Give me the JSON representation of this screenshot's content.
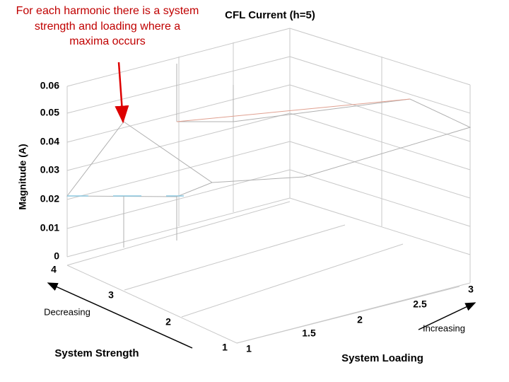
{
  "annotation": {
    "lines": [
      "For each harmonic there is a system",
      "strength and loading where a",
      "maxima occurs"
    ]
  },
  "plot": {
    "title": "CFL Current (h=5)",
    "z_axis": {
      "label": "Magnitude (A)",
      "ticks": [
        "0.06",
        "0.05",
        "0.04",
        "0.03",
        "0.02",
        "0.01",
        "0"
      ]
    },
    "strength_axis": {
      "label": "System Strength",
      "direction": "Decreasing",
      "ticks": [
        "4",
        "3",
        "2",
        "1"
      ]
    },
    "loading_axis": {
      "label": "System Loading",
      "direction": "Increasing",
      "ticks": [
        "1",
        "1.5",
        "2",
        "2.5",
        "3"
      ]
    }
  }
}
